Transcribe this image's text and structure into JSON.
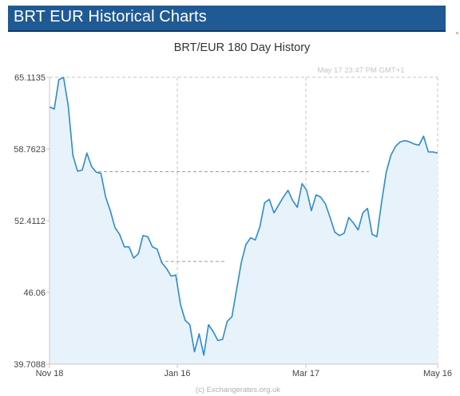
{
  "header": {
    "title": "BRT EUR Historical Charts"
  },
  "chart_data": {
    "type": "area",
    "title": "BRT/EUR  180 Day History",
    "timestamp": "May 17  23:47 PM GMT+1",
    "credits": "(c) Exchangerates.org.uk",
    "xlabel": "",
    "ylabel": "",
    "x_tick_labels": [
      "Nov 18",
      "Jan 16",
      "Mar 17",
      "May 16"
    ],
    "y_tick_labels": [
      "65.1135",
      "58.7623",
      "52.4112",
      "46.06",
      "39.7088"
    ],
    "ylim": [
      39.7088,
      65.1135
    ],
    "grid": "dashed",
    "colors": {
      "line": "#2b8bd0",
      "fill": "#e8f2fb",
      "grid": "#c6c6c6"
    },
    "series": [
      {
        "values": [
          62.5,
          62.3,
          64.9,
          65.1,
          62.6,
          58.2,
          56.8,
          56.9,
          58.4,
          57.2,
          56.7,
          56.6,
          54.5,
          53.3,
          51.8,
          51.2,
          50.1,
          50.1,
          49.1,
          49.5,
          51.1,
          51.0,
          50.1,
          49.9,
          48.7,
          48.2,
          47.5,
          47.6,
          45.0,
          43.6,
          43.2,
          40.8,
          42.4,
          40.5,
          43.2,
          42.6,
          41.8,
          41.9,
          43.5,
          43.9,
          46.3,
          48.7,
          50.3,
          50.9,
          50.7,
          51.9,
          54.0,
          54.3,
          53.1,
          53.8,
          54.5,
          55.1,
          54.2,
          53.6,
          55.7,
          55.1,
          53.3,
          54.7,
          54.5,
          53.9,
          52.7,
          51.4,
          51.1,
          51.3,
          52.7,
          52.2,
          51.6,
          53.1,
          53.5,
          51.2,
          51.0,
          54.0,
          56.7,
          58.2,
          59.0,
          59.4,
          59.5,
          59.4,
          59.2,
          59.1,
          59.9,
          58.5,
          58.5,
          58.4
        ]
      }
    ]
  }
}
